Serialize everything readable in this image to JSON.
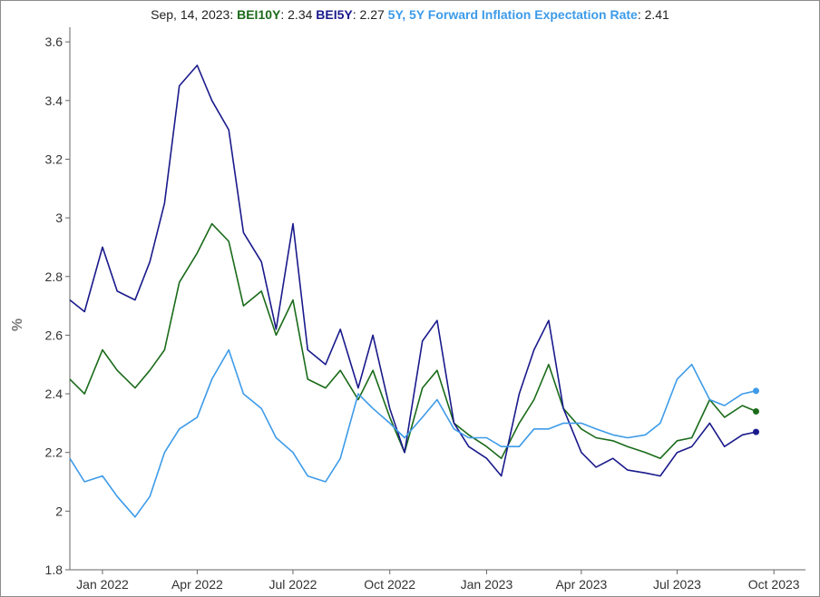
{
  "tooltip": {
    "date": "Sep, 14, 2023:",
    "items": [
      {
        "name": "BEI10Y",
        "value": "2.34"
      },
      {
        "name": "BEI5Y",
        "value": "2.27"
      },
      {
        "name": "5Y, 5Y Forward Inflation Expectation Rate",
        "value": "2.41"
      }
    ]
  },
  "chart_data": {
    "type": "line",
    "ylabel": "%",
    "xlabel": "",
    "ylim": [
      1.8,
      3.65
    ],
    "y_ticks": [
      "1.8",
      "2",
      "2.2",
      "2.4",
      "2.6",
      "2.8",
      "3",
      "3.2",
      "3.4",
      "3.6"
    ],
    "y_tick_values": [
      1.8,
      2.0,
      2.2,
      2.4,
      2.6,
      2.8,
      3.0,
      3.2,
      3.4,
      3.6
    ],
    "x_ticks": [
      "Jan 2022",
      "Apr 2022",
      "Jul 2022",
      "Oct 2022",
      "Jan 2023",
      "Apr 2023",
      "Jul 2023",
      "Oct 2023"
    ],
    "x_tick_dates": [
      "2022-01-01",
      "2022-04-01",
      "2022-07-01",
      "2022-10-01",
      "2023-01-01",
      "2023-04-01",
      "2023-07-01",
      "2023-10-01"
    ],
    "x_range": [
      "2021-12-01",
      "2023-10-31"
    ],
    "grid": false,
    "series": [
      {
        "name": "BEI10Y",
        "color": "#1a6b1a",
        "x": [
          "2021-12-01",
          "2021-12-15",
          "2022-01-01",
          "2022-01-15",
          "2022-02-01",
          "2022-02-15",
          "2022-03-01",
          "2022-03-15",
          "2022-04-01",
          "2022-04-15",
          "2022-05-01",
          "2022-05-15",
          "2022-06-01",
          "2022-06-15",
          "2022-07-01",
          "2022-07-15",
          "2022-08-01",
          "2022-08-15",
          "2022-09-01",
          "2022-09-15",
          "2022-10-01",
          "2022-10-15",
          "2022-11-01",
          "2022-11-15",
          "2022-12-01",
          "2022-12-15",
          "2023-01-01",
          "2023-01-15",
          "2023-02-01",
          "2023-02-15",
          "2023-03-01",
          "2023-03-15",
          "2023-04-01",
          "2023-04-15",
          "2023-05-01",
          "2023-05-15",
          "2023-06-01",
          "2023-06-15",
          "2023-07-01",
          "2023-07-15",
          "2023-08-01",
          "2023-08-15",
          "2023-09-01",
          "2023-09-14"
        ],
        "values": [
          2.45,
          2.4,
          2.55,
          2.48,
          2.42,
          2.48,
          2.55,
          2.78,
          2.88,
          2.98,
          2.92,
          2.7,
          2.75,
          2.6,
          2.72,
          2.45,
          2.42,
          2.48,
          2.38,
          2.48,
          2.32,
          2.2,
          2.42,
          2.48,
          2.3,
          2.26,
          2.22,
          2.18,
          2.3,
          2.38,
          2.5,
          2.35,
          2.28,
          2.25,
          2.24,
          2.22,
          2.2,
          2.18,
          2.24,
          2.25,
          2.38,
          2.32,
          2.36,
          2.34
        ]
      },
      {
        "name": "BEI5Y",
        "color": "#1a1a8c",
        "x": [
          "2021-12-01",
          "2021-12-15",
          "2022-01-01",
          "2022-01-15",
          "2022-02-01",
          "2022-02-15",
          "2022-03-01",
          "2022-03-15",
          "2022-04-01",
          "2022-04-15",
          "2022-05-01",
          "2022-05-15",
          "2022-06-01",
          "2022-06-15",
          "2022-07-01",
          "2022-07-15",
          "2022-08-01",
          "2022-08-15",
          "2022-09-01",
          "2022-09-15",
          "2022-10-01",
          "2022-10-15",
          "2022-11-01",
          "2022-11-15",
          "2022-12-01",
          "2022-12-15",
          "2023-01-01",
          "2023-01-15",
          "2023-02-01",
          "2023-02-15",
          "2023-03-01",
          "2023-03-15",
          "2023-04-01",
          "2023-04-15",
          "2023-05-01",
          "2023-05-15",
          "2023-06-01",
          "2023-06-15",
          "2023-07-01",
          "2023-07-15",
          "2023-08-01",
          "2023-08-15",
          "2023-09-01",
          "2023-09-14"
        ],
        "values": [
          2.72,
          2.68,
          2.9,
          2.75,
          2.72,
          2.85,
          3.05,
          3.45,
          3.52,
          3.4,
          3.3,
          2.95,
          2.85,
          2.62,
          2.98,
          2.55,
          2.5,
          2.62,
          2.42,
          2.6,
          2.35,
          2.2,
          2.58,
          2.65,
          2.3,
          2.22,
          2.18,
          2.12,
          2.4,
          2.55,
          2.65,
          2.35,
          2.2,
          2.15,
          2.18,
          2.14,
          2.13,
          2.12,
          2.2,
          2.22,
          2.3,
          2.22,
          2.26,
          2.27
        ]
      },
      {
        "name": "5Y, 5Y Forward Inflation Expectation Rate",
        "color": "#3d9be9",
        "x": [
          "2021-12-01",
          "2021-12-15",
          "2022-01-01",
          "2022-01-15",
          "2022-02-01",
          "2022-02-15",
          "2022-03-01",
          "2022-03-15",
          "2022-04-01",
          "2022-04-15",
          "2022-05-01",
          "2022-05-15",
          "2022-06-01",
          "2022-06-15",
          "2022-07-01",
          "2022-07-15",
          "2022-08-01",
          "2022-08-15",
          "2022-09-01",
          "2022-09-15",
          "2022-10-01",
          "2022-10-15",
          "2022-11-01",
          "2022-11-15",
          "2022-12-01",
          "2022-12-15",
          "2023-01-01",
          "2023-01-15",
          "2023-02-01",
          "2023-02-15",
          "2023-03-01",
          "2023-03-15",
          "2023-04-01",
          "2023-04-15",
          "2023-05-01",
          "2023-05-15",
          "2023-06-01",
          "2023-06-15",
          "2023-07-01",
          "2023-07-15",
          "2023-08-01",
          "2023-08-15",
          "2023-09-01",
          "2023-09-14"
        ],
        "values": [
          2.18,
          2.1,
          2.12,
          2.05,
          1.98,
          2.05,
          2.2,
          2.28,
          2.32,
          2.45,
          2.55,
          2.4,
          2.35,
          2.25,
          2.2,
          2.12,
          2.1,
          2.18,
          2.4,
          2.35,
          2.3,
          2.25,
          2.32,
          2.38,
          2.28,
          2.25,
          2.25,
          2.22,
          2.22,
          2.28,
          2.28,
          2.3,
          2.3,
          2.28,
          2.26,
          2.25,
          2.26,
          2.3,
          2.45,
          2.5,
          2.38,
          2.36,
          2.4,
          2.41
        ]
      }
    ]
  }
}
